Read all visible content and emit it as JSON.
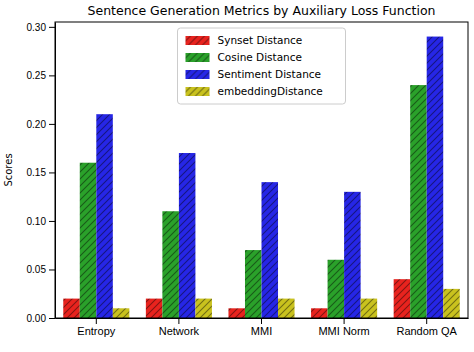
{
  "chart_data": {
    "type": "bar",
    "title": "Sentence Generation Metrics by Auxiliary Loss Function",
    "y_label": "Scores",
    "categories": [
      "Entropy",
      "Network",
      "MMI",
      "MMI Norm",
      "Random QA"
    ],
    "series": [
      {
        "name": "Synset Distance",
        "color": "#e8231e",
        "values": [
          0.02,
          0.02,
          0.01,
          0.01,
          0.04
        ]
      },
      {
        "name": "Cosine Distance",
        "color": "#2aa12a",
        "values": [
          0.16,
          0.11,
          0.07,
          0.06,
          0.24
        ]
      },
      {
        "name": "Sentiment Distance",
        "color": "#2626e6",
        "values": [
          0.21,
          0.17,
          0.14,
          0.13,
          0.29
        ]
      },
      {
        "name": "embeddingDistance",
        "color": "#c9c21e",
        "values": [
          0.01,
          0.02,
          0.02,
          0.02,
          0.03
        ]
      }
    ],
    "ylim": [
      0,
      0.305
    ],
    "yticks": [
      {
        "value": 0,
        "label": "0.00"
      },
      {
        "value": 0.05,
        "label": "0.05"
      },
      {
        "value": 0.1,
        "label": "0.10"
      },
      {
        "value": 0.15,
        "label": "0.15"
      },
      {
        "value": 0.2,
        "label": "0.20"
      },
      {
        "value": 0.25,
        "label": "0.25"
      },
      {
        "value": 0.3,
        "label": "0.30"
      }
    ],
    "legend": "upper center",
    "grid": false
  }
}
